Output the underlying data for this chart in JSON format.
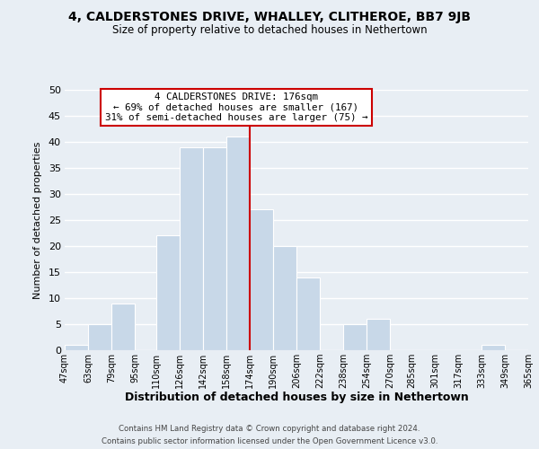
{
  "title": "4, CALDERSTONES DRIVE, WHALLEY, CLITHEROE, BB7 9JB",
  "subtitle": "Size of property relative to detached houses in Nethertown",
  "xlabel": "Distribution of detached houses by size in Nethertown",
  "ylabel": "Number of detached properties",
  "bar_color": "#c8d8e8",
  "bar_edge_color": "#ffffff",
  "grid_color": "#ffffff",
  "bg_color": "#e8eef4",
  "vline_x": 174,
  "vline_color": "#cc0000",
  "annotation_line1": "4 CALDERSTONES DRIVE: 176sqm",
  "annotation_line2": "← 69% of detached houses are smaller (167)",
  "annotation_line3": "31% of semi-detached houses are larger (75) →",
  "bin_edges": [
    47,
    63,
    79,
    95,
    110,
    126,
    142,
    158,
    174,
    190,
    206,
    222,
    238,
    254,
    270,
    285,
    301,
    317,
    333,
    349,
    365
  ],
  "bin_heights": [
    1,
    5,
    9,
    0,
    22,
    39,
    39,
    41,
    27,
    20,
    14,
    0,
    5,
    6,
    0,
    0,
    0,
    0,
    1,
    0
  ],
  "tick_labels": [
    "47sqm",
    "63sqm",
    "79sqm",
    "95sqm",
    "110sqm",
    "126sqm",
    "142sqm",
    "158sqm",
    "174sqm",
    "190sqm",
    "206sqm",
    "222sqm",
    "238sqm",
    "254sqm",
    "270sqm",
    "285sqm",
    "301sqm",
    "317sqm",
    "333sqm",
    "349sqm",
    "365sqm"
  ],
  "ylim": [
    0,
    50
  ],
  "yticks": [
    0,
    5,
    10,
    15,
    20,
    25,
    30,
    35,
    40,
    45,
    50
  ],
  "footer1": "Contains HM Land Registry data © Crown copyright and database right 2024.",
  "footer2": "Contains public sector information licensed under the Open Government Licence v3.0."
}
